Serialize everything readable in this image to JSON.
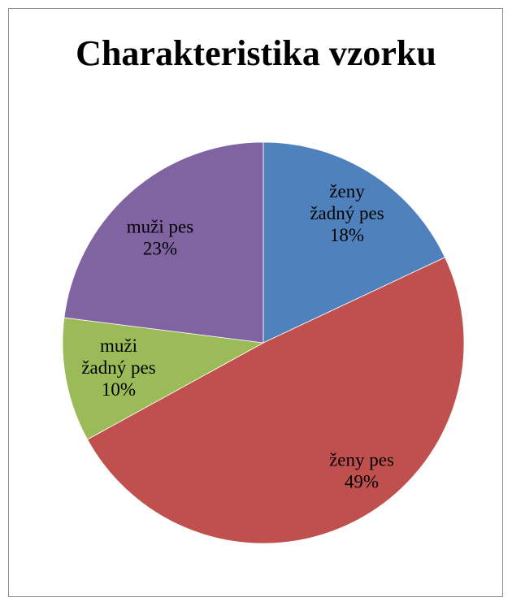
{
  "chart_data": {
    "type": "pie",
    "title": "Charakteristika vzorku",
    "slices": [
      {
        "label_lines": [
          "ženy",
          "žadný pes"
        ],
        "percent_label": "18%",
        "value": 18,
        "color": "#4f81bd"
      },
      {
        "label_lines": [
          "ženy pes"
        ],
        "percent_label": "49%",
        "value": 49,
        "color": "#c0504d"
      },
      {
        "label_lines": [
          "muži",
          "žadný pes"
        ],
        "percent_label": "10%",
        "value": 10,
        "color": "#9bbb59"
      },
      {
        "label_lines": [
          "muži pes"
        ],
        "percent_label": "23%",
        "value": 23,
        "color": "#8064a2"
      }
    ],
    "start_angle": "12 o'clock",
    "direction": "clockwise",
    "legend": "none"
  }
}
